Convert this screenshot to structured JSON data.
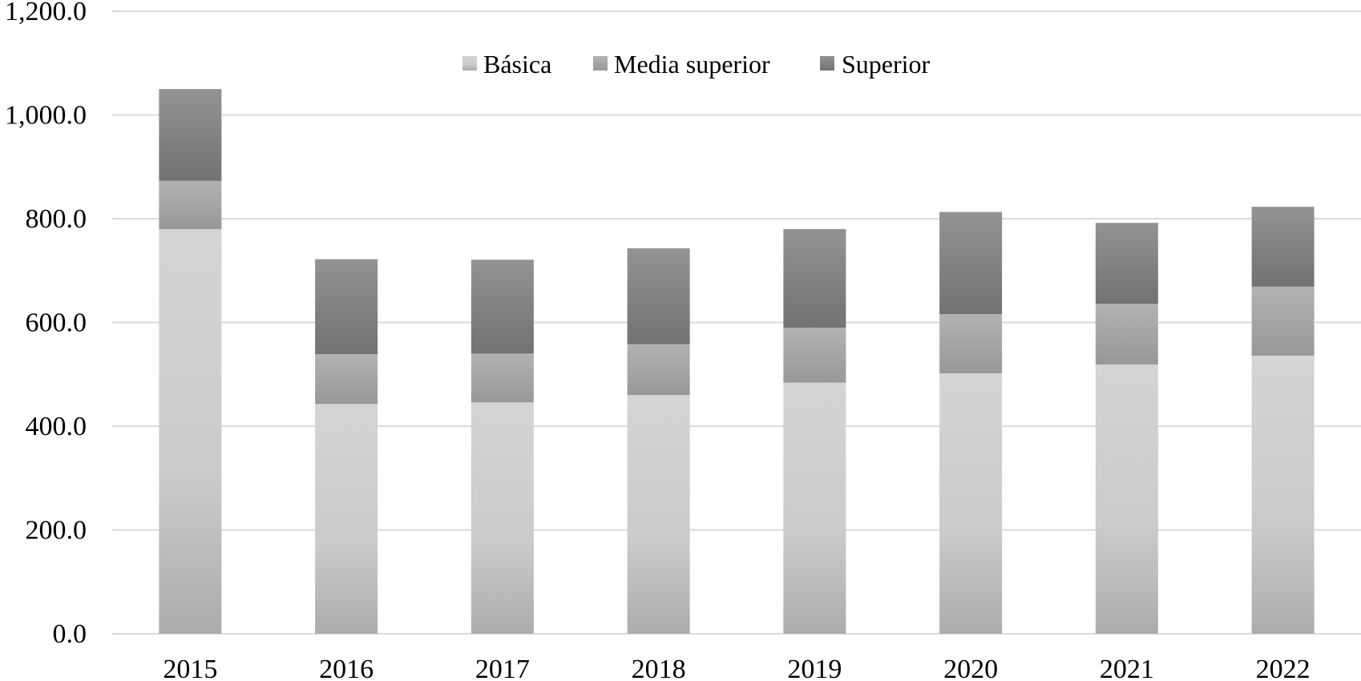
{
  "chart_data": {
    "type": "bar",
    "stacked": true,
    "title": "",
    "xlabel": "",
    "ylabel": "",
    "categories": [
      "2015",
      "2016",
      "2017",
      "2018",
      "2019",
      "2020",
      "2021",
      "2022"
    ],
    "series": [
      {
        "name": "Básica",
        "color": "#c9c9c9",
        "values": [
          780.0,
          443.0,
          446.0,
          460.0,
          484.0,
          502.0,
          519.0,
          536.0
        ]
      },
      {
        "name": "Media superior",
        "color": "#a3a3a3",
        "values": [
          93.0,
          96.0,
          94.0,
          98.0,
          106.0,
          114.0,
          117.0,
          133.0
        ]
      },
      {
        "name": "Superior",
        "color": "#7f7f7f",
        "values": [
          177.0,
          183.0,
          181.0,
          185.0,
          190.0,
          197.0,
          156.0,
          154.0
        ]
      }
    ],
    "ylim": [
      0,
      1200
    ],
    "yticks": [
      "0.0",
      "200.0",
      "400.0",
      "600.0",
      "800.0",
      "1,000.0",
      "1,200.0"
    ],
    "ytick_values": [
      0,
      200,
      400,
      600,
      800,
      1000,
      1200
    ],
    "grid": true,
    "legend_position": "top-center"
  }
}
